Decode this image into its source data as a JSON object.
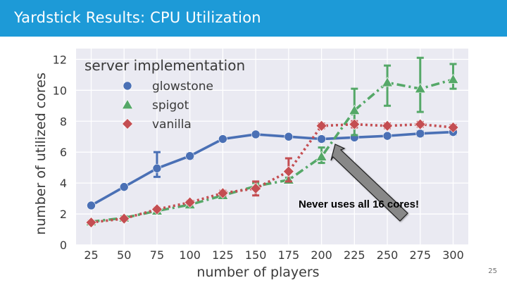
{
  "slide": {
    "title": "Yardstick Results: CPU Utilization",
    "page_number": "25",
    "annotation": "Never uses all 16 cores!"
  },
  "colors": {
    "title_bar": "#1d9ad7",
    "glowstone": "#4a70b5",
    "spigot": "#55a868",
    "vanilla": "#c44e52",
    "plot_bg": "#eaeaf2",
    "arrow": "#888888"
  },
  "chart_data": {
    "type": "line",
    "title": "",
    "xlabel": "number of players",
    "ylabel": "number of utilized cores",
    "legend_title": "server implementation",
    "legend_position": "top-left",
    "grid": true,
    "x": [
      25,
      50,
      75,
      100,
      125,
      150,
      175,
      200,
      225,
      250,
      275,
      300
    ],
    "xticks": [
      "25",
      "50",
      "75",
      "100",
      "125",
      "150",
      "175",
      "200",
      "225",
      "250",
      "275",
      "300"
    ],
    "yticks": [
      "0",
      "2",
      "4",
      "6",
      "8",
      "10",
      "12"
    ],
    "ylim": [
      0,
      12.7
    ],
    "series": [
      {
        "name": "glowstone",
        "marker": "circle",
        "linestyle": "solid",
        "values": [
          2.55,
          3.75,
          4.95,
          5.75,
          6.85,
          7.15,
          7.0,
          6.85,
          6.95,
          7.05,
          7.2,
          7.3
        ],
        "err_low": [
          2.55,
          3.75,
          4.4,
          5.6,
          6.75,
          7.05,
          6.9,
          6.7,
          6.85,
          6.95,
          7.05,
          7.15
        ],
        "err_high": [
          2.55,
          3.75,
          6.0,
          5.9,
          6.95,
          7.25,
          7.1,
          7.0,
          7.05,
          7.15,
          7.35,
          7.45
        ]
      },
      {
        "name": "spigot",
        "marker": "triangle",
        "linestyle": "dashdot",
        "values": [
          1.5,
          1.75,
          2.2,
          2.6,
          3.2,
          3.8,
          4.2,
          5.7,
          8.7,
          10.5,
          10.1,
          10.7
        ],
        "err_low": [
          1.5,
          1.65,
          2.1,
          2.5,
          3.05,
          3.6,
          4.05,
          5.3,
          7.1,
          9.0,
          8.6,
          10.1
        ],
        "err_high": [
          1.5,
          1.85,
          2.3,
          2.7,
          3.35,
          4.0,
          4.35,
          6.3,
          10.1,
          11.6,
          12.1,
          11.7
        ]
      },
      {
        "name": "vanilla",
        "marker": "diamond",
        "linestyle": "dotted",
        "values": [
          1.45,
          1.7,
          2.3,
          2.75,
          3.35,
          3.65,
          4.75,
          7.7,
          7.8,
          7.7,
          7.8,
          7.6
        ],
        "err_low": [
          1.35,
          1.6,
          2.2,
          2.65,
          3.2,
          3.2,
          4.1,
          7.55,
          7.6,
          7.55,
          7.65,
          7.45
        ],
        "err_high": [
          1.55,
          1.8,
          2.4,
          2.85,
          3.5,
          4.1,
          5.6,
          7.85,
          8.0,
          7.85,
          7.95,
          7.75
        ]
      }
    ]
  }
}
